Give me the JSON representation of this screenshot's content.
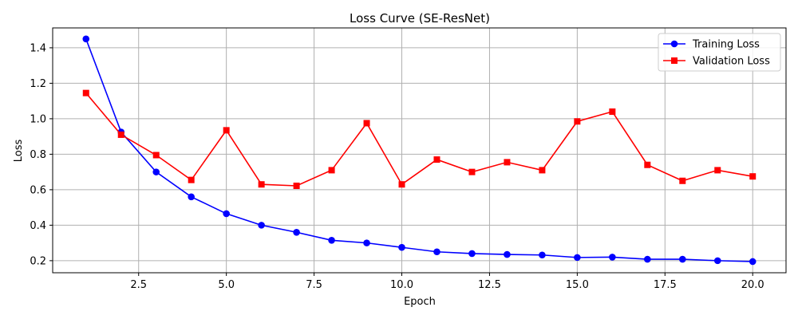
{
  "chart_data": {
    "type": "line",
    "title": "Loss Curve (SE-ResNet)",
    "xlabel": "Epoch",
    "ylabel": "Loss",
    "xlim": [
      0.05,
      20.95
    ],
    "ylim": [
      0.132,
      1.512
    ],
    "xticks": [
      2.5,
      5.0,
      7.5,
      10.0,
      12.5,
      15.0,
      17.5,
      20.0
    ],
    "yticks": [
      0.2,
      0.4,
      0.6,
      0.8,
      1.0,
      1.2,
      1.4
    ],
    "grid": true,
    "legend_position": "top-right",
    "x": [
      1,
      2,
      3,
      4,
      5,
      6,
      7,
      8,
      9,
      10,
      11,
      12,
      13,
      14,
      15,
      16,
      17,
      18,
      19,
      20
    ],
    "series": [
      {
        "name": "Training Loss",
        "color": "#0000ff",
        "marker": "circle",
        "values": [
          1.45,
          0.925,
          0.7,
          0.56,
          0.465,
          0.4,
          0.36,
          0.315,
          0.3,
          0.275,
          0.25,
          0.24,
          0.235,
          0.232,
          0.218,
          0.22,
          0.208,
          0.208,
          0.2,
          0.195
        ]
      },
      {
        "name": "Validation Loss",
        "color": "#ff0000",
        "marker": "square",
        "values": [
          1.145,
          0.91,
          0.795,
          0.655,
          0.935,
          0.63,
          0.622,
          0.71,
          0.975,
          0.63,
          0.77,
          0.7,
          0.755,
          0.71,
          0.985,
          1.04,
          0.74,
          0.65,
          0.71,
          0.675
        ]
      }
    ]
  }
}
